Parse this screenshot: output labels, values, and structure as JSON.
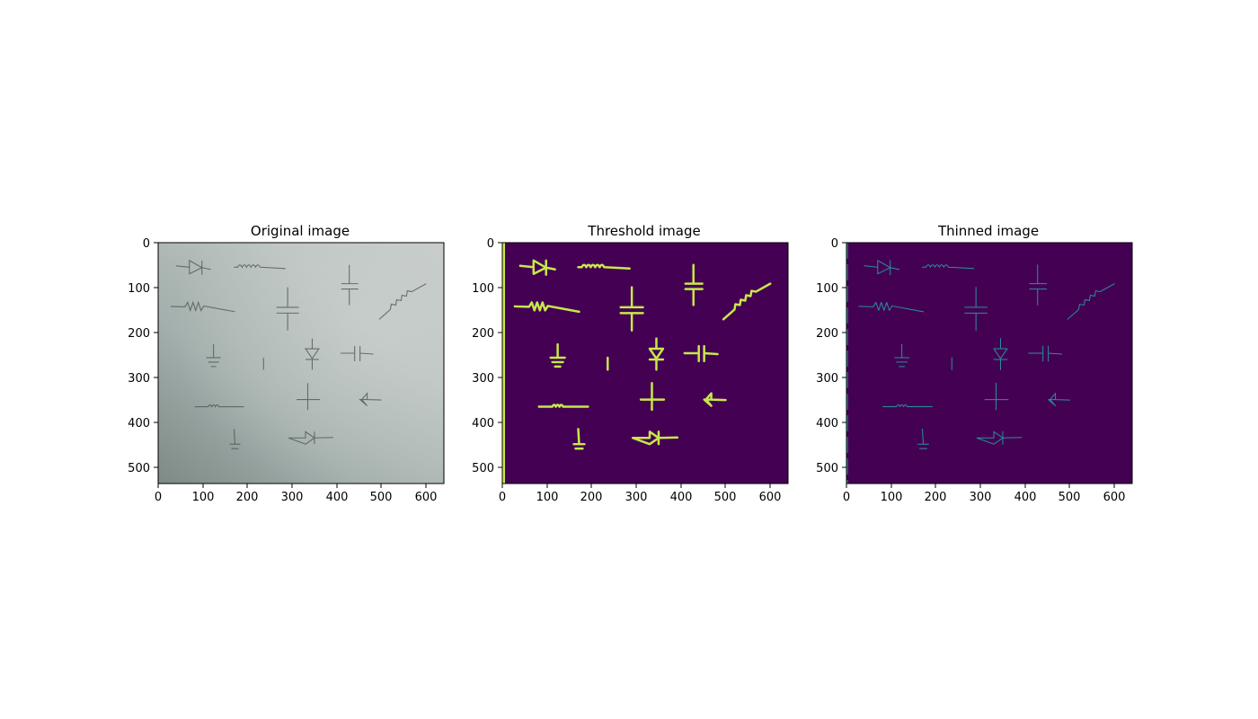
{
  "figure": {
    "panels": [
      {
        "title": "Original image",
        "x_ticks": [
          "0",
          "100",
          "200",
          "300",
          "400",
          "500",
          "600"
        ],
        "y_ticks": [
          "0",
          "100",
          "200",
          "300",
          "400",
          "500"
        ],
        "xlim": [
          0,
          640
        ],
        "ylim": [
          540,
          0
        ]
      },
      {
        "title": "Threshold image",
        "x_ticks": [
          "0",
          "100",
          "200",
          "300",
          "400",
          "500",
          "600"
        ],
        "y_ticks": [
          "0",
          "100",
          "200",
          "300",
          "400",
          "500"
        ],
        "xlim": [
          0,
          640
        ],
        "ylim": [
          540,
          0
        ]
      },
      {
        "title": "Thinned image",
        "x_ticks": [
          "0",
          "100",
          "200",
          "300",
          "400",
          "500",
          "600"
        ],
        "y_ticks": [
          "0",
          "100",
          "200",
          "300",
          "400",
          "500"
        ],
        "xlim": [
          0,
          640
        ],
        "ylim": [
          540,
          0
        ]
      }
    ]
  },
  "colors": {
    "threshold_background": "#440154",
    "threshold_strokes": "#c8e84a",
    "thinned_background": "#440154",
    "thinned_strokes": "#2a8f9a",
    "original_strokes": "#4a5550"
  }
}
